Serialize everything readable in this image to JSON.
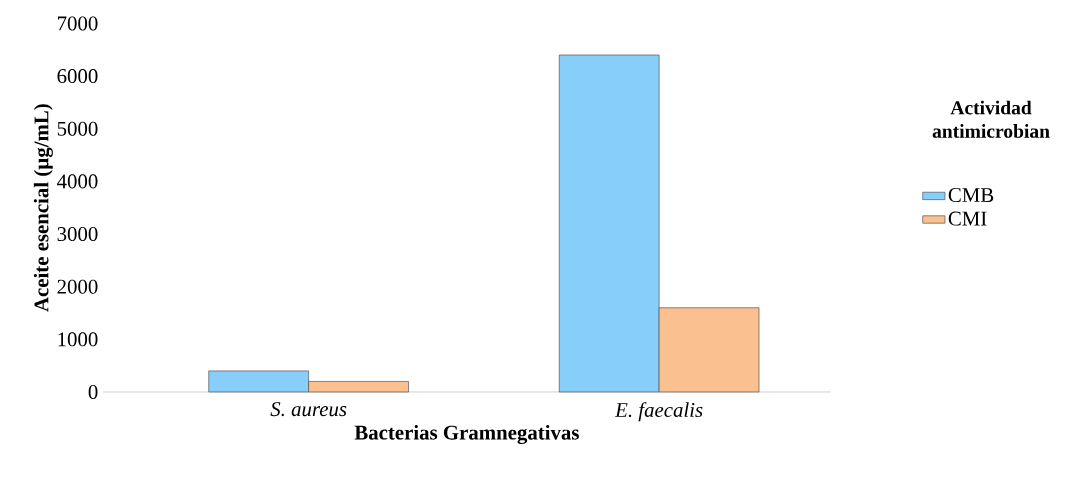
{
  "chart_data": {
    "type": "bar",
    "xlabel": "Bacterias Gramnegativas",
    "ylabel": "Aceite esencial (µg/mL)",
    "legend_title": "Actividad antimicrobian",
    "categories": [
      "S. aureus",
      "E. faecalis"
    ],
    "series": [
      {
        "name": "CMB",
        "color": "#87cefa",
        "values": [
          400,
          6400
        ]
      },
      {
        "name": "CMI",
        "color": "#fac090",
        "values": [
          200,
          1600
        ]
      }
    ],
    "ylim": [
      0,
      7000
    ],
    "yticks": [
      0,
      1000,
      2000,
      3000,
      4000,
      5000,
      6000,
      7000
    ],
    "grid": false,
    "legend": "right"
  }
}
